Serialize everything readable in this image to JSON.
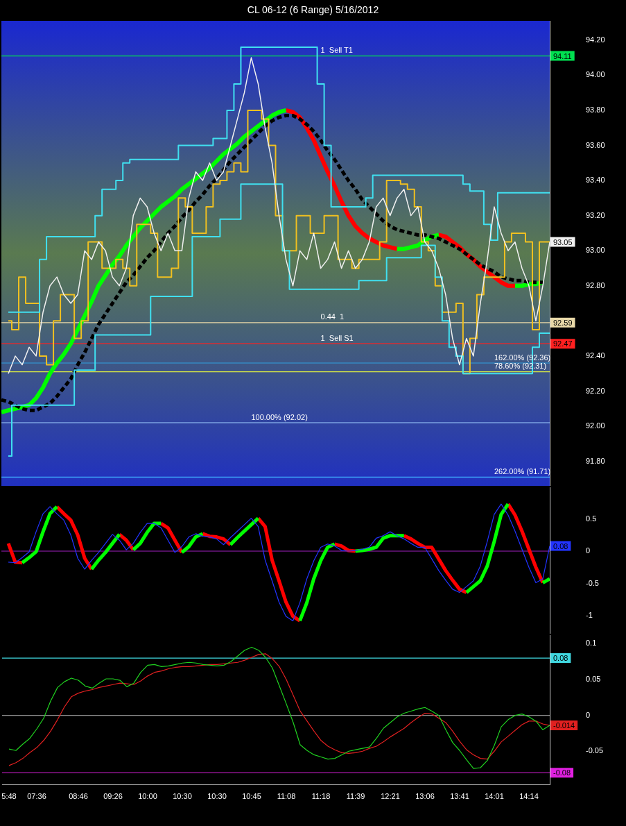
{
  "chart_data": [
    {
      "type": "line",
      "title": "CL 06-12 (6 Range)  5/16/2012",
      "tick_labels": "y",
      "ylim": [
        91.66,
        94.31
      ],
      "yticks": [
        {
          "value": 91.8,
          "label": "91.80"
        },
        {
          "value": 92.0,
          "label": "92.00"
        },
        {
          "value": 92.2,
          "label": "92.20"
        },
        {
          "value": 92.4,
          "label": "92.40"
        },
        {
          "value": 92.8,
          "label": "92.80"
        },
        {
          "value": 93.0,
          "label": "93.00"
        },
        {
          "value": 93.2,
          "label": "93.20"
        },
        {
          "value": 93.4,
          "label": "93.40"
        },
        {
          "value": 93.6,
          "label": "93.60"
        },
        {
          "value": 93.8,
          "label": "93.80"
        },
        {
          "value": 94.0,
          "label": "94.00"
        },
        {
          "value": 94.2,
          "label": "94.20"
        }
      ],
      "categories": [
        null,
        "5:48",
        null,
        null,
        null,
        "07:36",
        null,
        null,
        null,
        null,
        null,
        "08:46",
        null,
        null,
        null,
        null,
        "09:26",
        null,
        null,
        null,
        null,
        "10:00",
        null,
        null,
        null,
        null,
        "10:30",
        null,
        null,
        null,
        null,
        "10:30",
        null,
        null,
        null,
        null,
        "10:45",
        null,
        null,
        null,
        null,
        "11:08",
        null,
        null,
        null,
        null,
        "11:18",
        null,
        null,
        null,
        null,
        "11:39",
        null,
        null,
        null,
        null,
        "12:21",
        null,
        null,
        null,
        null,
        "13:06",
        null,
        null,
        null,
        null,
        "13:41",
        null,
        null,
        null,
        null,
        "14:01",
        null,
        null,
        null,
        null,
        "14:14",
        null,
        null,
        null,
        null,
        null
      ],
      "series": [
        {
          "color": "#f0f0f0",
          "value_labels": [
            null,
            null,
            null,
            null,
            null,
            null,
            null,
            null,
            null,
            null,
            null,
            null,
            null,
            null,
            null,
            null,
            null,
            null,
            null,
            null,
            null,
            null,
            null,
            null,
            null,
            null,
            null,
            null,
            null,
            null,
            null,
            null,
            null,
            null,
            null,
            null,
            null,
            null,
            null,
            null,
            null,
            null,
            null,
            null,
            null,
            null,
            null,
            null,
            null,
            null,
            null,
            null,
            null,
            null,
            null,
            null,
            null,
            null,
            null,
            null,
            null,
            null,
            null,
            null,
            null,
            null,
            null,
            null,
            null,
            null,
            null,
            null,
            null,
            null,
            null,
            null,
            null,
            null,
            null,
            "93.05",
            null,
            null
          ],
          "values": [
            null,
            92.3,
            92.4,
            92.35,
            92.45,
            92.4,
            92.65,
            92.8,
            92.85,
            92.75,
            92.7,
            92.75,
            93.0,
            92.95,
            93.05,
            93.0,
            92.85,
            92.8,
            92.9,
            93.2,
            93.3,
            93.25,
            93.1,
            93.0,
            93.1,
            93.0,
            93.0,
            93.3,
            93.45,
            93.4,
            93.5,
            93.4,
            93.45,
            93.6,
            93.75,
            93.9,
            94.1,
            93.95,
            93.7,
            93.5,
            93.2,
            92.95,
            92.8,
            93.0,
            92.95,
            93.1,
            92.9,
            92.95,
            93.05,
            92.9,
            93.0,
            92.9,
            92.95,
            93.05,
            93.25,
            93.3,
            93.2,
            93.3,
            93.35,
            93.2,
            93.25,
            93.05,
            93.0,
            92.9,
            92.75,
            92.5,
            92.35,
            92.5,
            92.4,
            92.7,
            92.95,
            93.25,
            93.1,
            93.0,
            93.05,
            92.9,
            92.8,
            92.6,
            92.8,
            93.05,
            null,
            null
          ]
        },
        {
          "color": "#40e0f0",
          "type": "step",
          "values": [
            null,
            92.65,
            92.65,
            92.65,
            92.65,
            92.65,
            92.95,
            93.08,
            93.08,
            93.08,
            93.08,
            93.08,
            93.08,
            93.08,
            93.2,
            93.35,
            93.35,
            93.4,
            93.5,
            93.52,
            93.52,
            93.52,
            93.52,
            93.52,
            93.52,
            93.52,
            93.6,
            93.6,
            93.6,
            93.6,
            93.6,
            93.64,
            93.64,
            93.8,
            93.95,
            94.16,
            94.16,
            94.16,
            94.16,
            94.16,
            94.16,
            94.16,
            94.16,
            94.16,
            94.16,
            94.16,
            93.95,
            93.6,
            93.25,
            93.25,
            93.25,
            93.25,
            93.25,
            93.3,
            93.43,
            93.43,
            93.43,
            93.43,
            93.43,
            93.43,
            93.43,
            93.43,
            93.43,
            93.43,
            93.43,
            93.43,
            93.43,
            93.38,
            93.34,
            93.34,
            93.15,
            93.06,
            93.33,
            93.33,
            93.33,
            93.33,
            93.33,
            93.33,
            93.33,
            93.33,
            null,
            null
          ]
        },
        {
          "color": "#40e0f0",
          "type": "step",
          "values": [
            null,
            91.83,
            92.12,
            92.12,
            92.12,
            92.12,
            92.12,
            92.12,
            92.12,
            92.12,
            92.12,
            92.32,
            92.32,
            92.32,
            92.52,
            92.52,
            92.52,
            92.52,
            92.52,
            92.52,
            92.52,
            92.52,
            92.74,
            92.74,
            92.74,
            92.74,
            92.74,
            92.74,
            93.08,
            93.08,
            93.08,
            93.08,
            93.18,
            93.18,
            93.18,
            93.38,
            93.38,
            93.38,
            93.38,
            93.38,
            93.38,
            93.0,
            92.78,
            92.78,
            92.78,
            92.78,
            92.78,
            92.78,
            92.78,
            92.78,
            92.78,
            92.78,
            92.83,
            92.83,
            92.83,
            92.83,
            92.96,
            92.96,
            92.96,
            92.96,
            92.96,
            93.03,
            93.03,
            92.85,
            92.6,
            92.45,
            92.4,
            92.3,
            92.3,
            92.3,
            92.3,
            92.3,
            92.3,
            92.3,
            92.3,
            92.3,
            92.3,
            92.45,
            92.53,
            92.53,
            null,
            null
          ]
        },
        {
          "color": "#f0c020",
          "type": "step",
          "values": [
            null,
            92.6,
            92.55,
            92.85,
            92.7,
            92.7,
            92.4,
            92.35,
            92.6,
            92.75,
            92.75,
            92.5,
            92.6,
            93.05,
            93.05,
            92.9,
            92.9,
            92.95,
            92.9,
            92.8,
            93.15,
            93.15,
            93.1,
            92.85,
            92.85,
            92.9,
            93.3,
            93.25,
            93.1,
            93.1,
            93.25,
            93.38,
            93.4,
            93.45,
            93.5,
            93.45,
            93.8,
            93.8,
            93.75,
            93.6,
            93.2,
            93.0,
            93.0,
            93.2,
            93.2,
            93.1,
            93.1,
            93.2,
            93.2,
            92.95,
            92.95,
            92.9,
            92.95,
            92.95,
            92.95,
            93.05,
            93.4,
            93.4,
            93.38,
            93.35,
            93.25,
            93.05,
            93.0,
            92.8,
            92.65,
            92.65,
            92.7,
            92.3,
            92.5,
            92.75,
            92.85,
            92.85,
            92.85,
            93.05,
            93.1,
            93.1,
            93.05,
            92.55,
            93.05,
            93.05,
            null,
            null
          ]
        },
        {
          "color": "#000000",
          "line_style": "dashed",
          "values": [
            92.15,
            92.14,
            92.12,
            92.1,
            92.09,
            92.09,
            92.11,
            92.13,
            92.17,
            92.22,
            92.27,
            92.35,
            92.42,
            92.5,
            92.58,
            92.64,
            92.7,
            92.76,
            92.82,
            92.86,
            92.91,
            92.96,
            93.0,
            93.05,
            93.1,
            93.14,
            93.19,
            93.23,
            93.28,
            93.32,
            93.37,
            93.41,
            93.46,
            93.51,
            93.55,
            93.59,
            93.63,
            93.67,
            93.71,
            93.74,
            93.76,
            93.77,
            93.77,
            93.75,
            93.72,
            93.68,
            93.63,
            93.57,
            93.52,
            93.46,
            93.4,
            93.35,
            93.29,
            93.25,
            93.21,
            93.17,
            93.14,
            93.12,
            93.11,
            93.1,
            93.09,
            93.09,
            93.08,
            93.07,
            93.05,
            93.03,
            93.01,
            92.98,
            92.95,
            92.92,
            92.9,
            92.88,
            92.85,
            92.84,
            92.83,
            92.83,
            92.82,
            92.82,
            92.82,
            null,
            null,
            null
          ]
        },
        {
          "color": "#00ff00",
          "values": [
            92.08,
            92.09,
            92.1,
            92.11,
            92.12,
            92.16,
            92.22,
            92.3,
            92.36,
            92.41,
            92.47,
            92.55,
            92.63,
            92.71,
            92.8,
            92.86,
            92.92,
            92.97,
            93.03,
            93.08,
            93.13,
            93.17,
            93.21,
            93.25,
            93.28,
            93.31,
            93.35,
            93.38,
            93.41,
            93.44,
            93.47,
            93.51,
            93.55,
            93.58,
            93.61,
            93.65,
            93.68,
            93.71,
            93.74,
            93.77,
            93.79,
            93.8,
            null,
            null,
            null,
            null,
            null,
            null,
            null,
            null,
            null,
            null,
            null,
            null,
            null,
            null,
            null,
            93.01,
            93.01,
            93.02,
            93.03,
            93.06,
            93.08,
            93.09,
            null,
            null,
            null,
            null,
            null,
            null,
            null,
            null,
            null,
            null,
            92.8,
            92.8,
            92.81,
            92.81,
            92.82,
            null,
            null,
            null
          ]
        },
        {
          "color": "#ff0000",
          "values": [
            null,
            null,
            null,
            null,
            null,
            null,
            null,
            null,
            null,
            null,
            null,
            null,
            null,
            null,
            null,
            null,
            null,
            null,
            null,
            null,
            null,
            null,
            null,
            null,
            null,
            null,
            null,
            null,
            null,
            null,
            null,
            null,
            null,
            null,
            null,
            null,
            null,
            null,
            null,
            null,
            null,
            93.8,
            93.79,
            93.76,
            93.7,
            93.63,
            93.54,
            93.45,
            93.37,
            93.28,
            93.2,
            93.14,
            93.1,
            93.07,
            93.05,
            93.03,
            93.02,
            93.01,
            null,
            null,
            null,
            null,
            null,
            93.09,
            93.08,
            93.05,
            93.02,
            92.98,
            92.95,
            92.91,
            92.88,
            92.85,
            92.82,
            92.8,
            92.8,
            null,
            null,
            null,
            null,
            null,
            null,
            null
          ]
        }
      ],
      "ref_lines": [
        {
          "axis": "y",
          "value": 94.11,
          "label": "94.11",
          "color": "#00e050"
        },
        {
          "axis": "y",
          "value": 92.59,
          "label": "92.59",
          "color": "#e8d8a8"
        },
        {
          "axis": "y",
          "value": 92.47,
          "label": "92.47",
          "color": "#ff2020"
        },
        {
          "axis": "y",
          "value": 92.36,
          "color": "#30a0e0"
        },
        {
          "axis": "y",
          "value": 92.31,
          "color": "#e0f040"
        },
        {
          "axis": "y",
          "value": 92.02,
          "color": "#a0d0ff"
        },
        {
          "axis": "y",
          "value": 91.71,
          "color": "#40b0ff"
        }
      ],
      "annotations": [
        {
          "text": "1  Sell T1",
          "x": "11:18",
          "y": 94.11
        },
        {
          "text": "0.44  1",
          "x": "11:18",
          "y": 92.59
        },
        {
          "text": "1  Sell S1",
          "x": "11:18",
          "y": 92.47
        },
        {
          "text": "162.00% (92.36)",
          "x": "14:01",
          "y": 92.36
        },
        {
          "text": "78.60% (92.31)",
          "x": "14:01",
          "y": 92.31
        },
        {
          "text": "100.00% (92.02)",
          "x": "10:45",
          "y": 92.02
        },
        {
          "text": "262.00% (91.71)",
          "x": "14:01",
          "y": 91.71
        }
      ]
    },
    {
      "type": "line",
      "tick_labels": "y",
      "ylim": [
        -1.28,
        0.99
      ],
      "yticks": [
        -1,
        -0.5,
        0,
        0.5
      ],
      "categories": [
        null,
        "5:48",
        null,
        null,
        null,
        "07:36",
        null,
        null,
        null,
        null,
        null,
        "08:46",
        null,
        null,
        null,
        null,
        "09:26",
        null,
        null,
        null,
        null,
        "10:00",
        null,
        null,
        null,
        null,
        "10:30",
        null,
        null,
        null,
        null,
        "10:30",
        null,
        null,
        null,
        null,
        "10:45",
        null,
        null,
        null,
        null,
        "11:08",
        null,
        null,
        null,
        null,
        "11:18",
        null,
        null,
        null,
        null,
        "11:39",
        null,
        null,
        null,
        null,
        "12:21",
        null,
        null,
        null,
        null,
        "13:06",
        null,
        null,
        null,
        null,
        "13:41",
        null,
        null,
        null,
        null,
        "14:01",
        null,
        null,
        null,
        null,
        "14:14",
        null,
        null,
        null,
        null,
        null
      ],
      "series": [
        {
          "color": "#2233ff",
          "value_labels": [
            null,
            null,
            null,
            null,
            null,
            null,
            null,
            null,
            null,
            null,
            null,
            null,
            null,
            null,
            null,
            null,
            null,
            null,
            null,
            null,
            null,
            null,
            null,
            null,
            null,
            null,
            null,
            null,
            null,
            null,
            null,
            null,
            null,
            null,
            null,
            null,
            null,
            null,
            null,
            null,
            null,
            null,
            null,
            null,
            null,
            null,
            null,
            null,
            null,
            null,
            null,
            null,
            null,
            null,
            null,
            null,
            null,
            null,
            null,
            null,
            null,
            null,
            null,
            null,
            null,
            null,
            null,
            null,
            null,
            null,
            null,
            null,
            null,
            null,
            null,
            null,
            null,
            null,
            null,
            "0.08",
            null,
            null
          ],
          "values": [
            null,
            -0.17,
            -0.18,
            -0.1,
            -0.01,
            0.3,
            0.58,
            0.69,
            0.58,
            0.48,
            0.25,
            -0.11,
            -0.28,
            -0.14,
            -0.02,
            0.12,
            0.26,
            0.17,
            0.02,
            0.12,
            0.29,
            0.43,
            0.43,
            0.36,
            0.17,
            -0.02,
            0.07,
            0.22,
            0.27,
            0.23,
            0.22,
            0.19,
            0.1,
            0.21,
            0.31,
            0.41,
            0.51,
            0.38,
            -0.14,
            -0.46,
            -0.79,
            -1.01,
            -1.08,
            -0.8,
            -0.43,
            -0.15,
            0.06,
            0.11,
            0.08,
            0.01,
            0.0,
            0.01,
            0.03,
            0.06,
            0.2,
            0.24,
            0.3,
            0.24,
            0.19,
            0.12,
            0.06,
            0.06,
            -0.12,
            -0.3,
            -0.45,
            -0.59,
            -0.64,
            -0.55,
            -0.46,
            -0.23,
            0.15,
            0.57,
            0.73,
            0.56,
            0.31,
            0.03,
            -0.25,
            -0.49,
            -0.43,
            0.08,
            null,
            null
          ]
        },
        {
          "color": "#00ff00",
          "values": [
            null,
            null,
            null,
            -0.18,
            -0.1,
            -0.01,
            0.3,
            0.58,
            0.69,
            null,
            null,
            null,
            null,
            -0.28,
            -0.14,
            -0.02,
            0.12,
            0.26,
            null,
            0.02,
            0.12,
            0.29,
            0.43,
            0.43,
            null,
            null,
            -0.02,
            0.07,
            0.22,
            0.27,
            null,
            null,
            null,
            0.1,
            0.21,
            0.31,
            0.41,
            0.51,
            null,
            null,
            null,
            null,
            null,
            -1.08,
            -0.8,
            -0.43,
            -0.15,
            0.06,
            0.11,
            null,
            null,
            0.0,
            0.01,
            0.03,
            0.06,
            0.2,
            0.24,
            0.24,
            0.24,
            null,
            null,
            null,
            null,
            null,
            null,
            null,
            null,
            -0.64,
            -0.55,
            -0.46,
            -0.23,
            0.15,
            0.57,
            0.73,
            null,
            null,
            null,
            null,
            -0.49,
            -0.43,
            null,
            null
          ]
        },
        {
          "color": "#ff0000",
          "values": [
            null,
            0.12,
            -0.17,
            -0.18,
            null,
            null,
            null,
            null,
            0.69,
            0.58,
            0.48,
            0.25,
            -0.11,
            -0.28,
            null,
            null,
            null,
            0.26,
            0.17,
            0.02,
            null,
            null,
            null,
            0.43,
            0.36,
            0.17,
            -0.02,
            null,
            null,
            0.27,
            0.23,
            0.22,
            0.19,
            0.1,
            null,
            null,
            null,
            0.51,
            0.38,
            -0.14,
            -0.46,
            -0.79,
            -1.01,
            -1.08,
            null,
            null,
            null,
            null,
            0.11,
            0.08,
            0.01,
            0.0,
            null,
            null,
            null,
            null,
            null,
            null,
            0.24,
            0.19,
            0.12,
            0.06,
            0.06,
            -0.12,
            -0.3,
            -0.45,
            -0.59,
            -0.64,
            null,
            null,
            null,
            null,
            null,
            0.73,
            0.56,
            0.31,
            0.03,
            -0.25,
            -0.49,
            null,
            null,
            null
          ]
        }
      ],
      "ref_lines": [
        {
          "axis": "y",
          "value": 0,
          "color": "#a020c0"
        }
      ]
    },
    {
      "type": "line",
      "ylim": [
        -0.097,
        0.112
      ],
      "yticks": [
        -0.05,
        0,
        0.05,
        0.1
      ],
      "categories": [
        null,
        "5:48",
        null,
        null,
        null,
        "07:36",
        null,
        null,
        null,
        null,
        null,
        "08:46",
        null,
        null,
        null,
        null,
        "09:26",
        null,
        null,
        null,
        null,
        "10:00",
        null,
        null,
        null,
        null,
        "10:30",
        null,
        null,
        null,
        null,
        "10:30",
        null,
        null,
        null,
        null,
        "10:45",
        null,
        null,
        null,
        null,
        "11:08",
        null,
        null,
        null,
        null,
        "11:18",
        null,
        null,
        null,
        null,
        "11:39",
        null,
        null,
        null,
        null,
        "12:21",
        null,
        null,
        null,
        null,
        "13:06",
        null,
        null,
        null,
        null,
        "13:41",
        null,
        null,
        null,
        null,
        "14:01",
        null,
        null,
        null,
        null,
        "14:14",
        null,
        null,
        null,
        null,
        null
      ],
      "series": [
        {
          "color": "#20d020",
          "values": [
            null,
            -0.047,
            -0.049,
            -0.04,
            -0.032,
            -0.019,
            -0.004,
            0.02,
            0.039,
            0.047,
            0.052,
            0.049,
            0.041,
            0.038,
            0.045,
            0.051,
            0.051,
            0.049,
            0.04,
            0.045,
            0.06,
            0.07,
            0.071,
            0.068,
            0.069,
            0.071,
            0.073,
            0.074,
            0.073,
            0.071,
            0.07,
            0.069,
            0.07,
            0.075,
            0.083,
            0.091,
            0.095,
            0.091,
            0.081,
            0.066,
            0.041,
            0.016,
            -0.01,
            -0.041,
            -0.049,
            -0.055,
            -0.058,
            -0.061,
            -0.06,
            -0.055,
            -0.05,
            -0.048,
            -0.046,
            -0.044,
            -0.032,
            -0.018,
            -0.01,
            -0.002,
            0.003,
            0.006,
            0.009,
            0.011,
            0.006,
            0.0,
            -0.02,
            -0.038,
            -0.049,
            -0.062,
            -0.074,
            -0.073,
            -0.063,
            -0.042,
            -0.016,
            -0.006,
            0.0,
            0.002,
            -0.002,
            -0.008,
            -0.02,
            -0.014,
            null,
            null
          ]
        },
        {
          "color": "#e02020",
          "value_labels": [
            null,
            null,
            null,
            null,
            null,
            null,
            null,
            null,
            null,
            null,
            null,
            null,
            null,
            null,
            null,
            null,
            null,
            null,
            null,
            null,
            null,
            null,
            null,
            null,
            null,
            null,
            null,
            null,
            null,
            null,
            null,
            null,
            null,
            null,
            null,
            null,
            null,
            null,
            null,
            null,
            null,
            null,
            null,
            null,
            null,
            null,
            null,
            null,
            null,
            null,
            null,
            null,
            null,
            null,
            null,
            null,
            null,
            null,
            null,
            null,
            null,
            null,
            null,
            null,
            null,
            null,
            null,
            null,
            null,
            null,
            null,
            null,
            null,
            null,
            null,
            null,
            null,
            null,
            null,
            "-0.014",
            null,
            null
          ],
          "values": [
            null,
            -0.07,
            -0.066,
            -0.06,
            -0.052,
            -0.045,
            -0.035,
            -0.022,
            -0.006,
            0.012,
            0.026,
            0.031,
            0.034,
            0.036,
            0.039,
            0.041,
            0.043,
            0.045,
            0.044,
            0.043,
            0.048,
            0.055,
            0.06,
            0.062,
            0.065,
            0.067,
            0.068,
            0.068,
            0.069,
            0.07,
            0.071,
            0.071,
            0.072,
            0.073,
            0.074,
            0.077,
            0.081,
            0.085,
            0.086,
            0.079,
            0.068,
            0.05,
            0.028,
            0.006,
            -0.008,
            -0.022,
            -0.035,
            -0.043,
            -0.048,
            -0.052,
            -0.053,
            -0.052,
            -0.05,
            -0.046,
            -0.043,
            -0.037,
            -0.03,
            -0.024,
            -0.018,
            -0.01,
            -0.003,
            0.003,
            0.002,
            -0.004,
            -0.01,
            -0.022,
            -0.036,
            -0.048,
            -0.055,
            -0.06,
            -0.061,
            -0.05,
            -0.037,
            -0.029,
            -0.021,
            -0.013,
            -0.008,
            -0.008,
            -0.012,
            -0.014,
            null,
            null
          ]
        }
      ],
      "ref_lines": [
        {
          "axis": "y",
          "value": 0.08,
          "label": "0.08",
          "color": "#40d8e0"
        },
        {
          "axis": "y",
          "value": 0,
          "color": "#909090"
        },
        {
          "axis": "y",
          "value": -0.08,
          "label": "-0.08",
          "color": "#e020e0"
        }
      ]
    }
  ]
}
